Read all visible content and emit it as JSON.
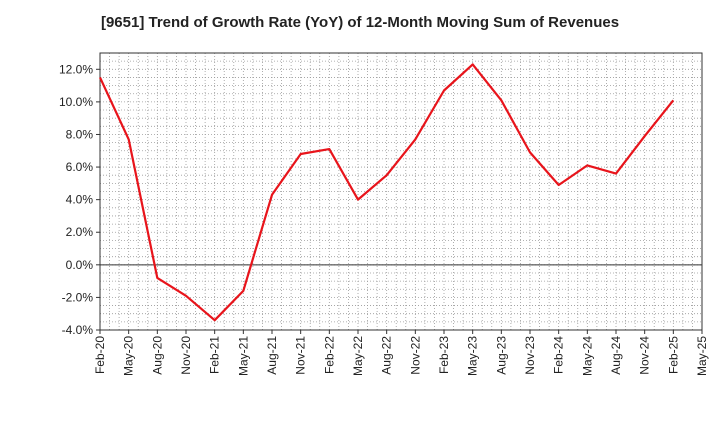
{
  "chart_data": {
    "type": "line",
    "title": "[9651]  Trend of Growth Rate (YoY) of 12-Month Moving Sum of Revenues",
    "xlabel": "",
    "ylabel": "",
    "ylim": [
      -4.0,
      13.0
    ],
    "y_ticks": [
      -4.0,
      -2.0,
      0.0,
      2.0,
      4.0,
      6.0,
      8.0,
      10.0,
      12.0
    ],
    "y_tick_labels": [
      "-4.0%",
      "-2.0%",
      "0.0%",
      "2.0%",
      "4.0%",
      "6.0%",
      "8.0%",
      "10.0%",
      "12.0%"
    ],
    "x_tick_labels": [
      "Feb-20",
      "May-20",
      "Aug-20",
      "Nov-20",
      "Feb-21",
      "May-21",
      "Aug-21",
      "Nov-21",
      "Feb-22",
      "May-22",
      "Aug-22",
      "Nov-22",
      "Feb-23",
      "May-23",
      "Aug-23",
      "Nov-23",
      "Feb-24",
      "May-24",
      "Aug-24",
      "Nov-24",
      "Feb-25",
      "May-25"
    ],
    "grid": true,
    "series": [
      {
        "color": "#e8141b",
        "values": [
          11.5,
          7.7,
          -0.8,
          -1.9,
          -3.4,
          -1.6,
          4.3,
          6.8,
          7.1,
          4.0,
          5.5,
          7.7,
          10.7,
          12.3,
          10.1,
          6.9,
          4.9,
          6.1,
          5.6,
          7.9,
          10.1
        ]
      }
    ]
  }
}
